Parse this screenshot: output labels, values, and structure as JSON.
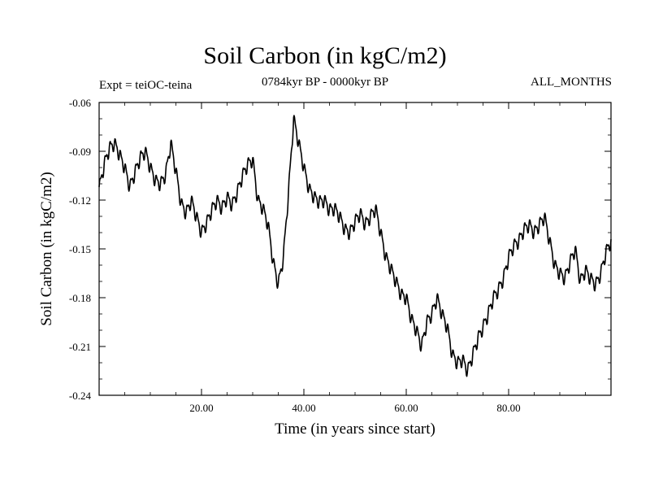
{
  "header": {
    "title": "Soil Carbon (in kgC/m2)",
    "subtitle": "0784kyr BP - 0000kyr BP",
    "experiment": "Expt = teiOC-teina",
    "months": "ALL_MONTHS"
  },
  "chart_data": {
    "type": "line",
    "title": "Soil Carbon (in kgC/m2)",
    "xlabel": "Time (in years since start)",
    "ylabel": "Soil Carbon (in kgC/m2)",
    "xlim": [
      0,
      100
    ],
    "ylim": [
      -0.24,
      -0.06
    ],
    "xticks": [
      20,
      40,
      60,
      80
    ],
    "xtick_labels": [
      "20.00",
      "40.00",
      "60.00",
      "80.00"
    ],
    "yticks": [
      -0.06,
      -0.09,
      -0.12,
      -0.15,
      -0.18,
      -0.21,
      -0.24
    ],
    "ytick_labels": [
      "-0.06",
      "-0.09",
      "-0.12",
      "-0.15",
      "-0.18",
      "-0.21",
      "-0.24"
    ],
    "line_color": "#000000",
    "series": [
      {
        "name": "Soil Carbon",
        "x": [
          0,
          1,
          2,
          3,
          4,
          5,
          6,
          7,
          8,
          9,
          10,
          11,
          12,
          13,
          14,
          15,
          16,
          17,
          18,
          19,
          20,
          21,
          22,
          23,
          24,
          25,
          26,
          27,
          28,
          29,
          30,
          31,
          32,
          33,
          34,
          35,
          36,
          37,
          38,
          39,
          40,
          41,
          42,
          43,
          44,
          45,
          46,
          47,
          48,
          49,
          50,
          51,
          52,
          53,
          54,
          55,
          56,
          57,
          58,
          59,
          60,
          61,
          62,
          63,
          64,
          65,
          66,
          67,
          68,
          69,
          70,
          71,
          72,
          73,
          74,
          75,
          76,
          77,
          78,
          79,
          80,
          81,
          82,
          83,
          84,
          85,
          86,
          87,
          88,
          89,
          90,
          91,
          92,
          93,
          94,
          95,
          96,
          97,
          98,
          99,
          100
        ],
        "values": [
          -0.113,
          -0.098,
          -0.088,
          -0.085,
          -0.092,
          -0.1,
          -0.112,
          -0.103,
          -0.094,
          -0.09,
          -0.1,
          -0.108,
          -0.11,
          -0.104,
          -0.085,
          -0.102,
          -0.122,
          -0.128,
          -0.12,
          -0.13,
          -0.14,
          -0.134,
          -0.126,
          -0.12,
          -0.125,
          -0.118,
          -0.123,
          -0.115,
          -0.105,
          -0.098,
          -0.095,
          -0.12,
          -0.125,
          -0.135,
          -0.158,
          -0.172,
          -0.155,
          -0.115,
          -0.07,
          -0.085,
          -0.1,
          -0.113,
          -0.118,
          -0.121,
          -0.12,
          -0.126,
          -0.125,
          -0.13,
          -0.138,
          -0.14,
          -0.133,
          -0.128,
          -0.135,
          -0.13,
          -0.125,
          -0.14,
          -0.155,
          -0.162,
          -0.17,
          -0.178,
          -0.18,
          -0.193,
          -0.2,
          -0.21,
          -0.195,
          -0.19,
          -0.18,
          -0.19,
          -0.198,
          -0.215,
          -0.22,
          -0.218,
          -0.225,
          -0.215,
          -0.205,
          -0.198,
          -0.19,
          -0.18,
          -0.175,
          -0.168,
          -0.155,
          -0.148,
          -0.145,
          -0.138,
          -0.135,
          -0.14,
          -0.135,
          -0.13,
          -0.145,
          -0.16,
          -0.165,
          -0.168,
          -0.158,
          -0.15,
          -0.17,
          -0.163,
          -0.168,
          -0.172,
          -0.165,
          -0.152,
          -0.145
        ]
      }
    ]
  }
}
